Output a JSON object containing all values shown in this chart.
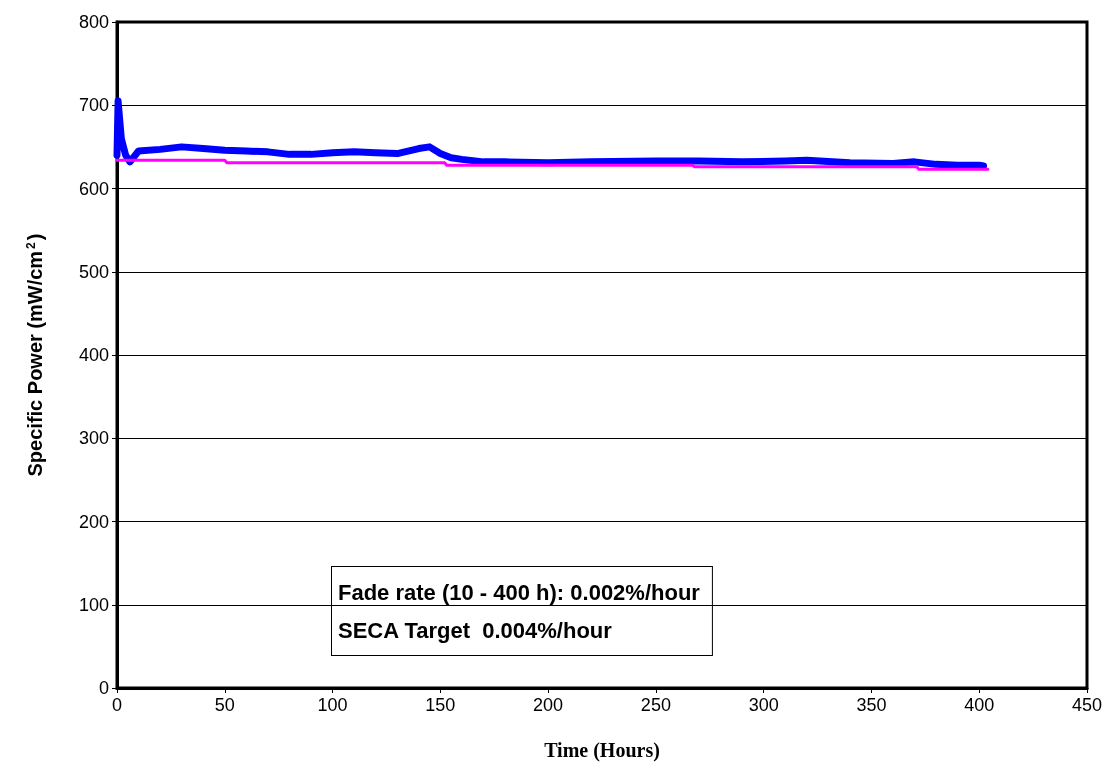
{
  "chart_data": {
    "type": "line",
    "xlabel": "Time (Hours)",
    "ylabel": "Specific Power (mW/cm$^{2}$)",
    "xlim": [
      0,
      450
    ],
    "xticks": [
      0,
      50,
      100,
      150,
      200,
      250,
      300,
      350,
      400,
      450
    ],
    "ylim": [
      0,
      800
    ],
    "yticks": [
      0,
      100,
      200,
      300,
      400,
      500,
      600,
      700,
      800
    ],
    "grid": "y",
    "marker": "none",
    "line_style": "solid",
    "annotations": [
      "Fade rate (10 - 400 h): 0.002%/hour",
      "SECA Target  0.004%/hour"
    ],
    "series": [
      {
        "color": "#0000ff",
        "x": [
          0,
          0.5,
          2,
          4,
          6,
          10,
          20,
          30,
          40,
          50,
          60,
          70,
          80,
          90,
          100,
          110,
          120,
          130,
          140,
          145,
          150,
          155,
          160,
          170,
          180,
          200,
          220,
          250,
          270,
          290,
          310,
          320,
          340,
          360,
          370,
          380,
          390,
          400,
          402
        ],
        "values": [
          640,
          705,
          660,
          640,
          632,
          645,
          647,
          650,
          648,
          646,
          645,
          644,
          641,
          641,
          643,
          644,
          643,
          642,
          648,
          650,
          642,
          637,
          635,
          632,
          632,
          631,
          632,
          633,
          633,
          632,
          633,
          634,
          631,
          630,
          632,
          629,
          628,
          628,
          627
        ]
      },
      {
        "color": "#ff00ff",
        "x": [
          0,
          50,
          51,
          152,
          153,
          267,
          268,
          371,
          372,
          404
        ],
        "values": [
          634,
          634,
          631,
          631,
          628,
          628,
          626,
          626,
          623,
          623
        ]
      }
    ]
  }
}
